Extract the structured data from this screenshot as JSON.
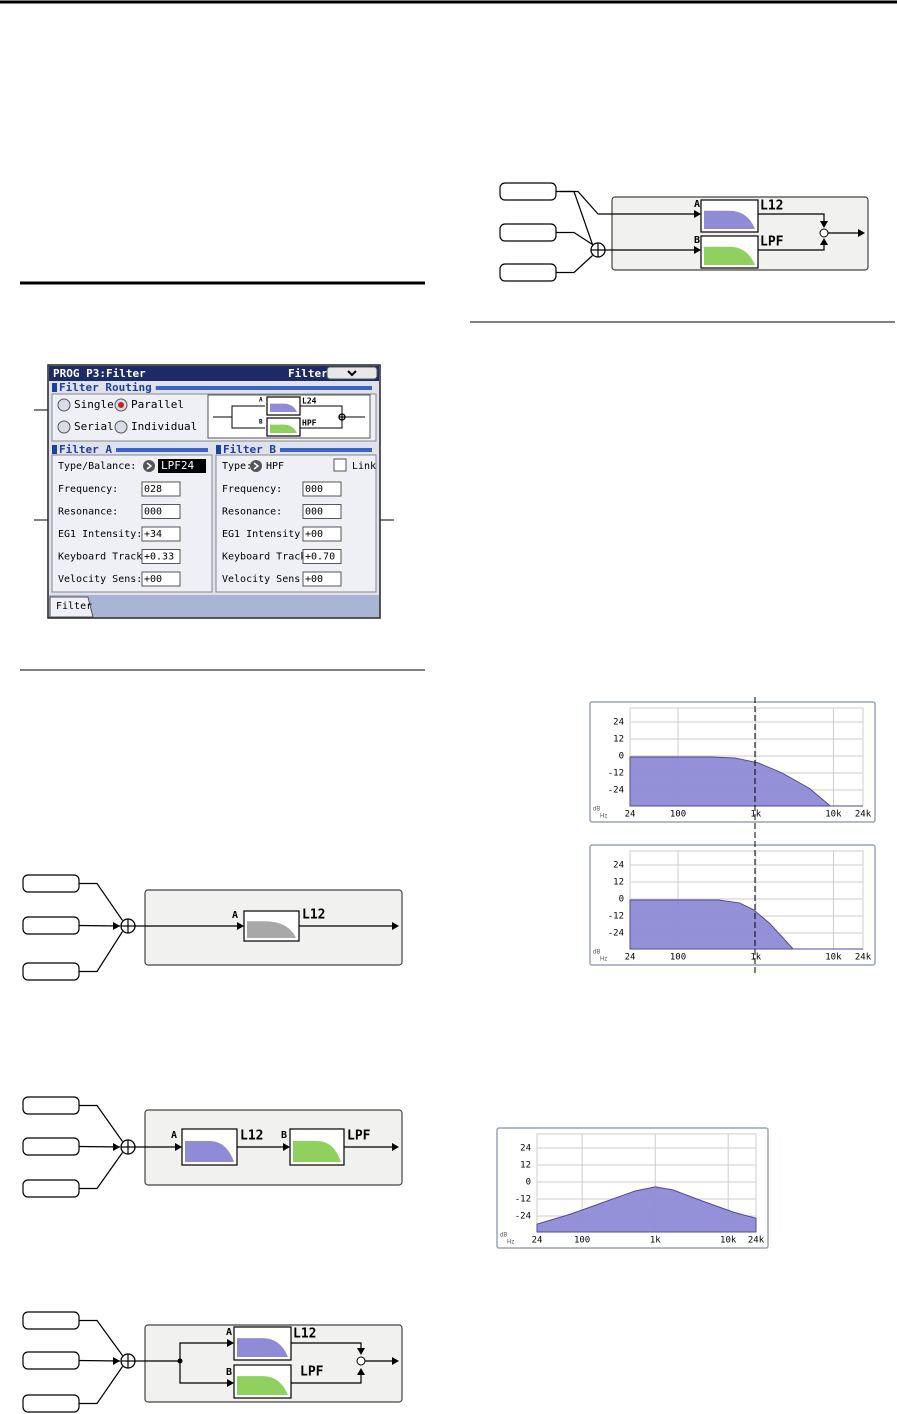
{
  "screen": {
    "title": "PROG P3:Filter",
    "page": "Filter",
    "routing": {
      "heading": "Filter Routing",
      "options": [
        "Single",
        "Parallel",
        "Serial",
        "Individual"
      ],
      "a": "A",
      "b": "B",
      "a_type": "L24",
      "b_type": "HPF"
    },
    "filter_a": {
      "heading": "Filter A",
      "type_label": "Type/Balance:",
      "type": "LPF24",
      "rows": [
        [
          "Frequency:",
          "028"
        ],
        [
          "Resonance:",
          "000"
        ],
        [
          "EG1 Intensity:",
          "+34"
        ],
        [
          "Keyboard Track:",
          "+0.33"
        ],
        [
          "Velocity Sens:",
          "+00"
        ]
      ]
    },
    "filter_b": {
      "heading": "Filter B",
      "type_label": "Type:",
      "type": "HPF",
      "link": "Link",
      "rows": [
        [
          "Frequency:",
          "000"
        ],
        [
          "Resonance:",
          "000"
        ],
        [
          "EG1 Intensity:",
          "+00"
        ],
        [
          "Keyboard Track:",
          "+0.70"
        ],
        [
          "Velocity Sens:",
          "+00"
        ]
      ]
    },
    "tab": "Filter"
  },
  "diagrams": {
    "a": "A",
    "b": "B",
    "l12": "L12",
    "lpf": "LPF"
  },
  "graphs": {
    "yticks": [
      "24",
      "12",
      "0",
      "-12",
      "-24"
    ],
    "xticks": [
      "24",
      "100",
      "1k",
      "10k",
      "24k"
    ],
    "unit_db": "dB",
    "unit_hz": "Hz"
  }
}
